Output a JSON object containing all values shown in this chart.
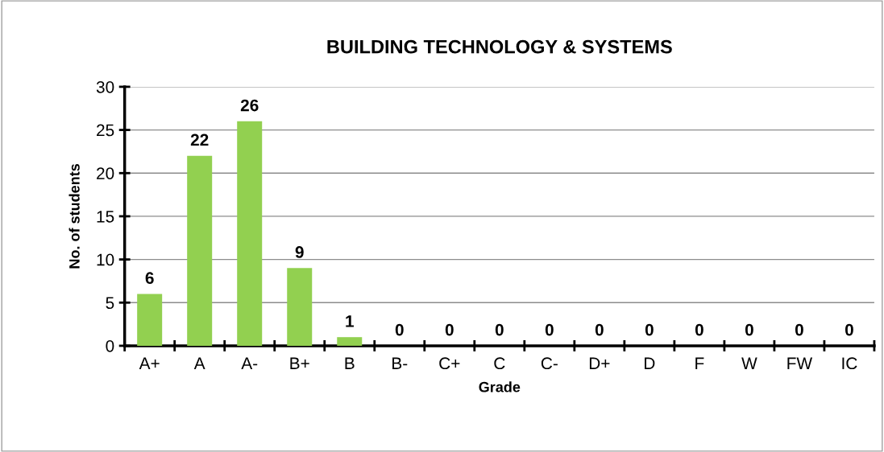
{
  "chart_data": {
    "type": "bar",
    "title": "BUILDING TECHNOLOGY & SYSTEMS",
    "xlabel": "Grade",
    "ylabel": "No. of students",
    "categories": [
      "A+",
      "A",
      "A-",
      "B+",
      "B",
      "B-",
      "C+",
      "C",
      "C-",
      "D+",
      "D",
      "F",
      "W",
      "FW",
      "IC"
    ],
    "values": [
      6,
      22,
      26,
      9,
      1,
      0,
      0,
      0,
      0,
      0,
      0,
      0,
      0,
      0,
      0
    ],
    "color": "#92d050",
    "ylim": [
      0,
      30
    ],
    "yticks": [
      0,
      5,
      10,
      15,
      20,
      25,
      30
    ],
    "grid": "y",
    "data_labels": true
  }
}
